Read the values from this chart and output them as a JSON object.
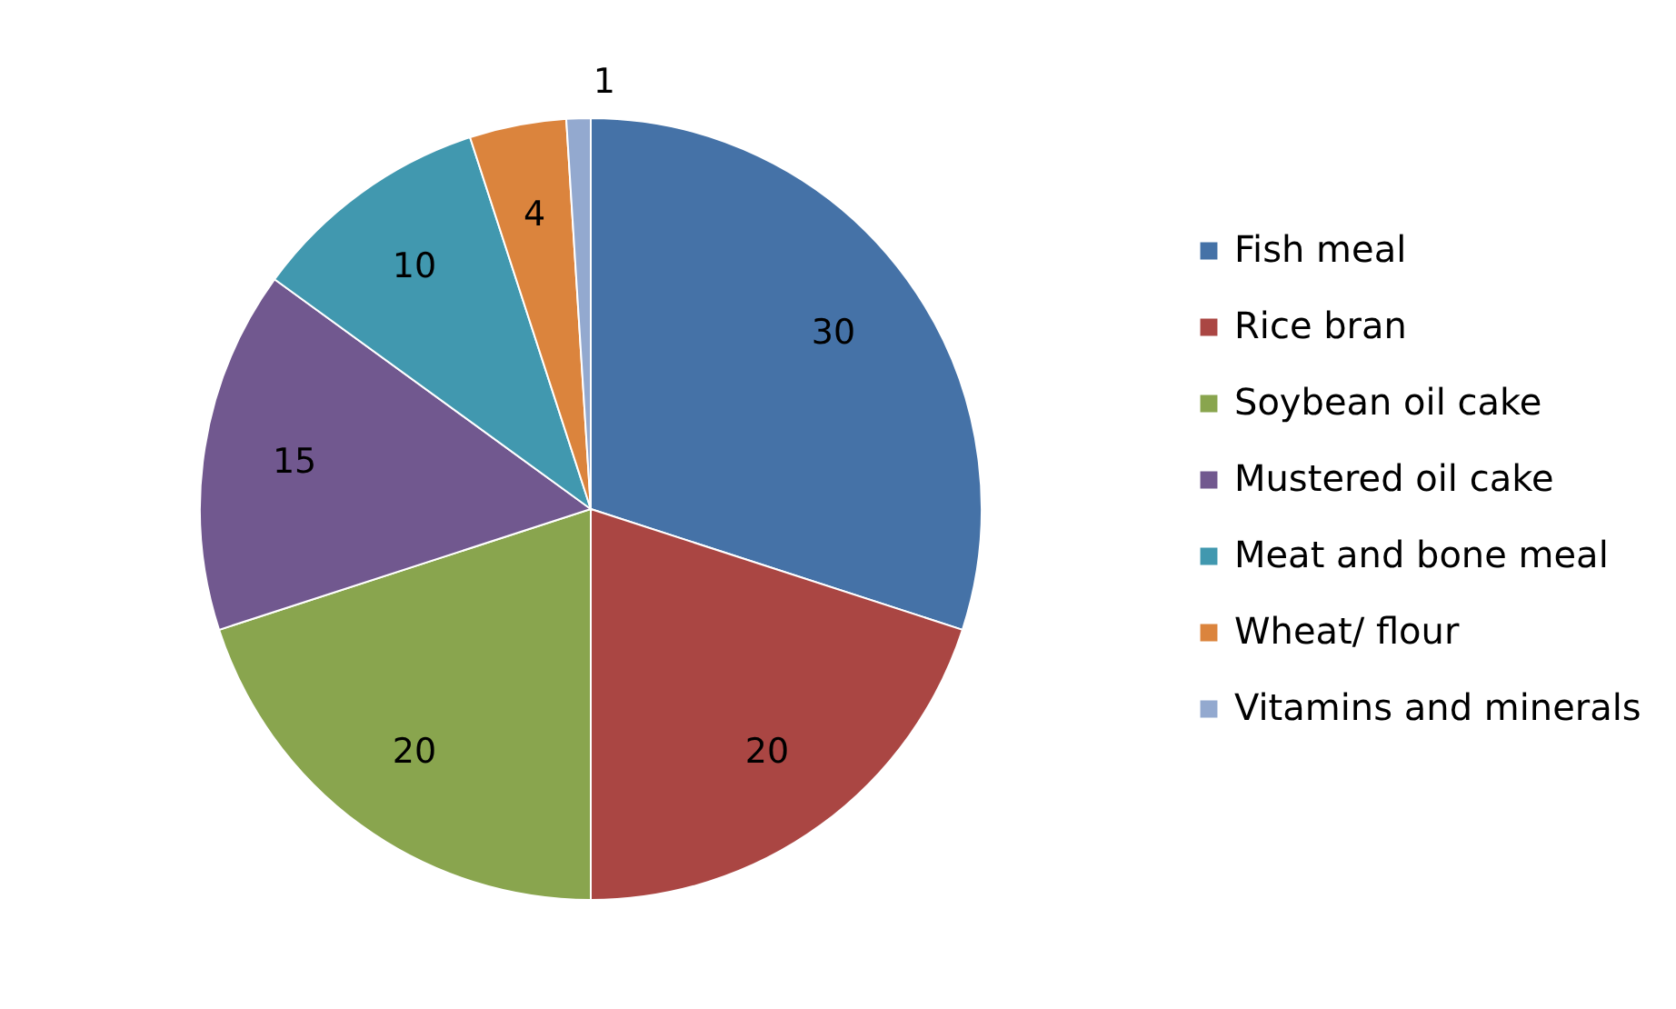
{
  "chart_data": {
    "type": "pie",
    "categories": [
      "Fish meal",
      "Rice bran",
      "Soybean oil cake",
      "Mustered oil cake",
      "Meat and bone meal",
      "Wheat/ flour",
      "Vitamins and minerals"
    ],
    "values": [
      30,
      20,
      20,
      15,
      10,
      4,
      1
    ],
    "colors": [
      "#4572a7",
      "#aa4643",
      "#89a54e",
      "#71588f",
      "#4198af",
      "#db843d",
      "#93a9cf"
    ],
    "data_labels": true,
    "legend": "right"
  }
}
